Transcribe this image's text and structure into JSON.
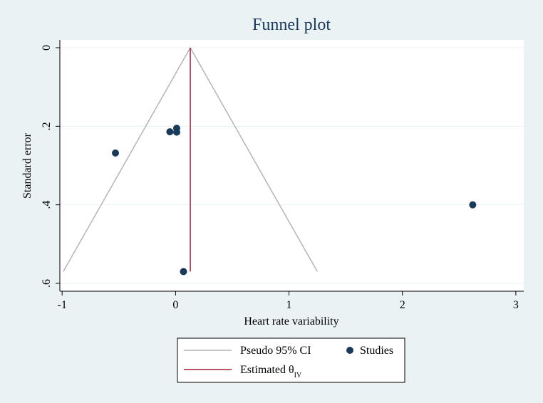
{
  "chart_data": {
    "type": "scatter",
    "title": "Funnel plot",
    "xlabel": "Heart rate variability",
    "ylabel": "Standard error",
    "xlim": [
      -1.02,
      3.07
    ],
    "ylim": [
      -0.02,
      0.62
    ],
    "y_reversed": true,
    "grid": true,
    "legend_position": "bottom",
    "x_ticks": [
      {
        "value": -1,
        "label": "-1"
      },
      {
        "value": 0,
        "label": "0"
      },
      {
        "value": 1,
        "label": "1"
      },
      {
        "value": 2,
        "label": "2"
      },
      {
        "value": 3,
        "label": "3"
      }
    ],
    "y_ticks": [
      {
        "value": 0,
        "label": "0"
      },
      {
        "value": 0.2,
        "label": ".2"
      },
      {
        "value": 0.4,
        "label": ".4"
      },
      {
        "value": 0.6,
        "label": ".6"
      }
    ],
    "pseudo_ci": {
      "name": "Pseudo 95% CI",
      "apex": {
        "x": 0.13,
        "y": 0.0
      },
      "left_bottom": {
        "x": -0.99,
        "y": 0.57
      },
      "right_bottom": {
        "x": 1.25,
        "y": 0.57
      },
      "color": "#b4b4b4"
    },
    "estimate": {
      "name_prefix": "Estimated θ",
      "name_sub": "IV",
      "x": 0.13,
      "y_range": [
        0.0,
        0.57
      ],
      "color": "#a31d3c"
    },
    "series": [
      {
        "name": "Studies",
        "color": "#1a3a5c",
        "points": [
          {
            "x": -0.53,
            "y": 0.268
          },
          {
            "x": -0.05,
            "y": 0.214
          },
          {
            "x": 0.01,
            "y": 0.205
          },
          {
            "x": 0.01,
            "y": 0.215
          },
          {
            "x": 0.07,
            "y": 0.57
          },
          {
            "x": 2.62,
            "y": 0.4
          }
        ]
      }
    ]
  },
  "colors": {
    "background": "#eaf2f3",
    "plot_area": "#ffffff",
    "gridline": "#eaf2f3",
    "title": "#1a3a5c",
    "text": "#000000"
  }
}
